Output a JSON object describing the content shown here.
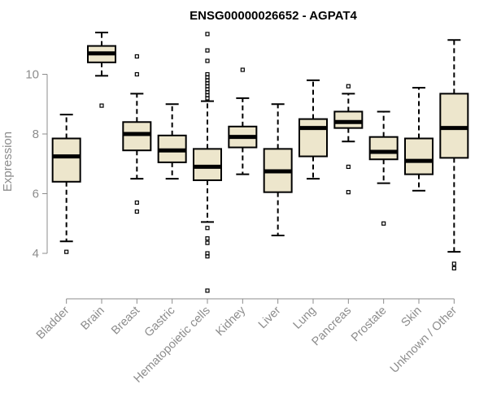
{
  "chart_data": {
    "type": "boxplot",
    "title": "ENSG00000026652 - AGPAT4",
    "xlabel": "",
    "ylabel": "Expression",
    "ylim": [
      2.6,
      11.6
    ],
    "yticks": [
      4,
      6,
      8,
      10
    ],
    "box_fill": "#ede6cc",
    "categories": [
      "Bladder",
      "Brain",
      "Breast",
      "Gastric",
      "Hematopoietic cells",
      "Kidney",
      "Liver",
      "Lung",
      "Pancreas",
      "Prostate",
      "Skin",
      "Unknown / Other"
    ],
    "series": [
      {
        "name": "Bladder",
        "whisker_low": 4.4,
        "q1": 6.4,
        "median": 7.25,
        "q3": 7.85,
        "whisker_high": 8.65,
        "outliers": [
          4.05
        ]
      },
      {
        "name": "Brain",
        "whisker_low": 9.95,
        "q1": 10.4,
        "median": 10.7,
        "q3": 10.95,
        "whisker_high": 11.4,
        "outliers": [
          8.95
        ]
      },
      {
        "name": "Breast",
        "whisker_low": 6.5,
        "q1": 7.45,
        "median": 8.0,
        "q3": 8.4,
        "whisker_high": 9.35,
        "outliers": [
          10.6,
          10.0,
          5.7,
          5.4
        ]
      },
      {
        "name": "Gastric",
        "whisker_low": 6.5,
        "q1": 7.05,
        "median": 7.45,
        "q3": 7.95,
        "whisker_high": 9.0,
        "outliers": []
      },
      {
        "name": "Hematopoietic cells",
        "whisker_low": 5.05,
        "q1": 6.45,
        "median": 6.9,
        "q3": 7.5,
        "whisker_high": 9.1,
        "outliers": [
          11.35,
          10.8,
          10.45,
          10.0,
          9.9,
          9.8,
          9.7,
          9.6,
          9.5,
          9.4,
          9.3,
          9.2,
          4.85,
          4.5,
          4.35,
          4.0,
          3.9,
          2.75
        ]
      },
      {
        "name": "Kidney",
        "whisker_low": 6.65,
        "q1": 7.55,
        "median": 7.9,
        "q3": 8.25,
        "whisker_high": 9.2,
        "outliers": [
          10.15
        ]
      },
      {
        "name": "Liver",
        "whisker_low": 4.6,
        "q1": 6.05,
        "median": 6.75,
        "q3": 7.5,
        "whisker_high": 9.0,
        "outliers": []
      },
      {
        "name": "Lung",
        "whisker_low": 6.5,
        "q1": 7.25,
        "median": 8.2,
        "q3": 8.5,
        "whisker_high": 9.8,
        "outliers": []
      },
      {
        "name": "Pancreas",
        "whisker_low": 7.75,
        "q1": 8.2,
        "median": 8.4,
        "q3": 8.75,
        "whisker_high": 9.35,
        "outliers": [
          9.6,
          6.9,
          6.05
        ]
      },
      {
        "name": "Prostate",
        "whisker_low": 6.35,
        "q1": 7.15,
        "median": 7.4,
        "q3": 7.9,
        "whisker_high": 8.75,
        "outliers": [
          5.0
        ]
      },
      {
        "name": "Skin",
        "whisker_low": 6.1,
        "q1": 6.65,
        "median": 7.1,
        "q3": 7.85,
        "whisker_high": 9.55,
        "outliers": []
      },
      {
        "name": "Unknown / Other",
        "whisker_low": 4.05,
        "q1": 7.2,
        "median": 8.2,
        "q3": 9.35,
        "whisker_high": 11.15,
        "outliers": [
          3.65,
          3.5
        ]
      }
    ]
  }
}
